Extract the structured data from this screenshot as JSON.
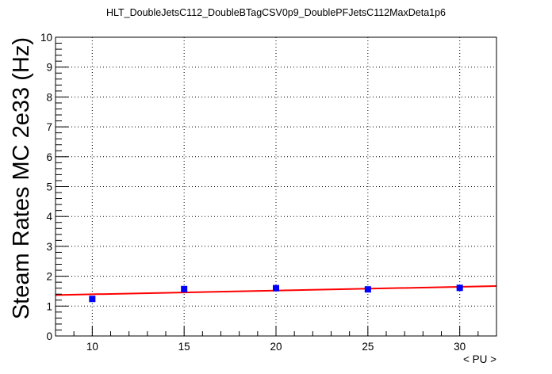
{
  "chart_data": {
    "type": "scatter",
    "title": "HLT_DoubleJetsC112_DoubleBTagCSV0p9_DoublePFJetsC112MaxDeta1p6",
    "xlabel": "< PU >",
    "ylabel": "Steam Rates MC 2e33 (Hz)",
    "xlim": [
      8,
      32
    ],
    "ylim": [
      0,
      10
    ],
    "xticks": [
      10,
      15,
      20,
      25,
      30
    ],
    "yticks": [
      0,
      1,
      2,
      3,
      4,
      5,
      6,
      7,
      8,
      9,
      10
    ],
    "grid": true,
    "series": [
      {
        "x": [
          10,
          15,
          20,
          25,
          30
        ],
        "y": [
          1.24,
          1.57,
          1.6,
          1.56,
          1.61
        ],
        "color": "#0000ff",
        "marker": "square"
      }
    ],
    "fit": {
      "x": [
        8,
        32
      ],
      "y": [
        1.37,
        1.67
      ],
      "color": "#ff0000"
    }
  }
}
